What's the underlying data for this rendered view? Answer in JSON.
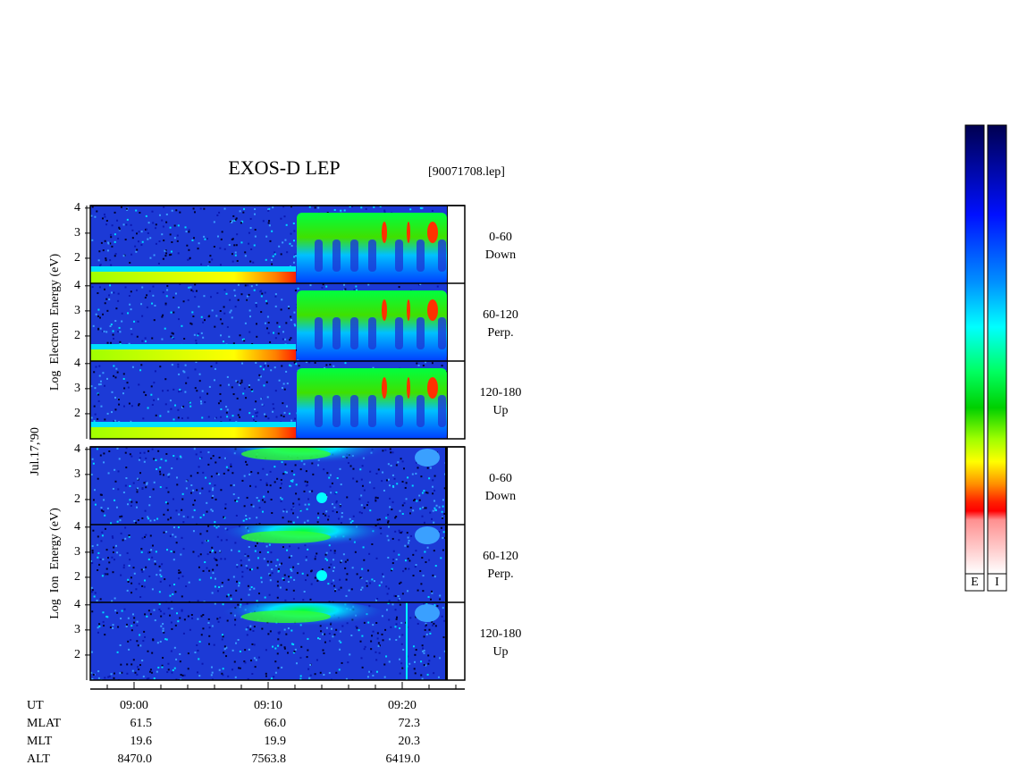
{
  "header": {
    "title": "EXOS-D LEP",
    "file": "[90071708.lep]"
  },
  "date": "Jul.17,'90",
  "groups": [
    {
      "ylabel": "Log  Electron  Energy (eV)",
      "panels": [
        {
          "angle": "0-60",
          "direction": "Down"
        },
        {
          "angle": "60-120",
          "direction": "Perp."
        },
        {
          "angle": "120-180",
          "direction": "Up"
        }
      ]
    },
    {
      "ylabel": "Log  Ion  Energy (eV)",
      "panels": [
        {
          "angle": "0-60",
          "direction": "Down"
        },
        {
          "angle": "60-120",
          "direction": "Perp."
        },
        {
          "angle": "120-180",
          "direction": "Up"
        }
      ]
    }
  ],
  "yticks": [
    2,
    3,
    4
  ],
  "ephemeris": {
    "labels": [
      "UT",
      "MLAT",
      "MLT",
      "ALT"
    ],
    "rows": [
      [
        "09:00",
        "09:10",
        "09:20"
      ],
      [
        "61.5",
        "66.0",
        "72.3"
      ],
      [
        "19.6",
        "19.9",
        "20.3"
      ],
      [
        "8470.0",
        "7563.8",
        "6419.0"
      ]
    ]
  },
  "colorbars": [
    "E",
    "I"
  ]
}
